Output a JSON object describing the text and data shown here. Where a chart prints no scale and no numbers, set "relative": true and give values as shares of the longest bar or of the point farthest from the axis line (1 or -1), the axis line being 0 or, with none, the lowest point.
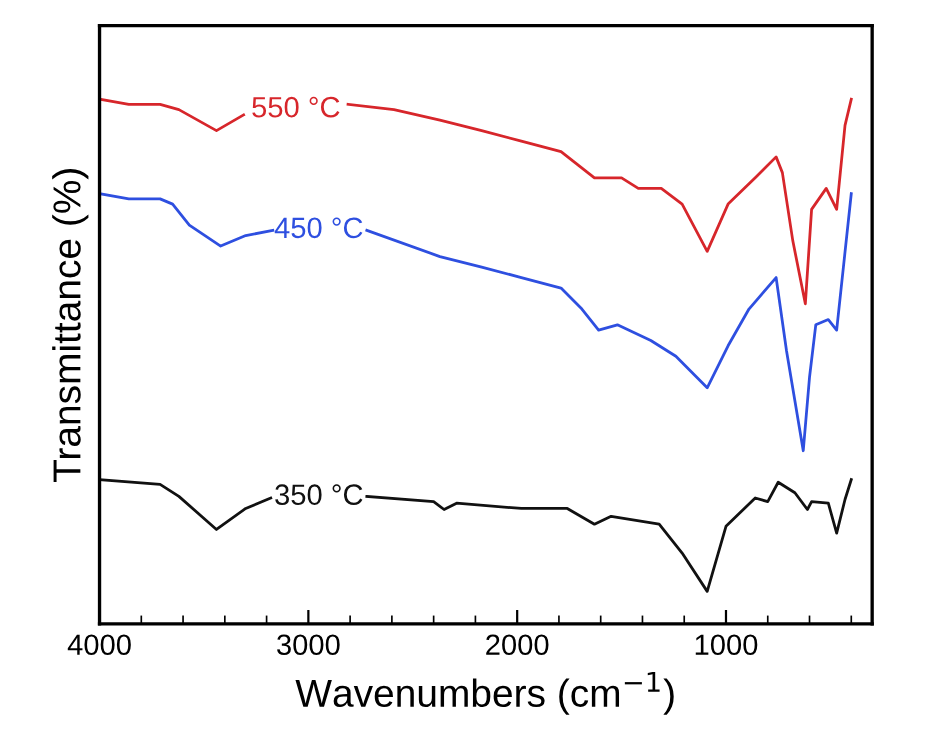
{
  "chart_data": {
    "type": "line",
    "xlabel": "Wavenumbers (cm$^{−1}$)",
    "ylabel": "Transmittance (%)",
    "relative": true,
    "xlim": [
      4000,
      300
    ],
    "xticks": [
      4000,
      3000,
      2000,
      1000
    ],
    "grid": false,
    "legend": false,
    "line_style": "solid",
    "marker": "none",
    "series": [
      {
        "name": "550 °C",
        "color": "#d7262b",
        "x": [
          4000,
          3860,
          3710,
          3620,
          3440,
          3310,
          3060,
          2810,
          2590,
          2370,
          2170,
          1980,
          1790,
          1630,
          1500,
          1420,
          1310,
          1210,
          1090,
          990,
          860,
          760,
          730,
          680,
          620,
          590,
          520,
          470,
          430,
          400
        ],
        "values": [
          1.0,
          0.99,
          0.99,
          0.98,
          0.94,
          0.97,
          null,
          0.99,
          0.98,
          0.96,
          0.94,
          0.92,
          0.9,
          0.85,
          0.85,
          0.83,
          0.83,
          0.8,
          0.71,
          0.8,
          0.85,
          0.89,
          0.86,
          0.73,
          0.61,
          0.79,
          0.83,
          0.79,
          0.95,
          1.0
        ]
      },
      {
        "name": "450 °C",
        "color": "#2e4fe0",
        "x": [
          4000,
          3860,
          3710,
          3650,
          3570,
          3420,
          3300,
          3170,
          2950,
          2720,
          2370,
          2170,
          1980,
          1790,
          1690,
          1610,
          1520,
          1360,
          1240,
          1090,
          990,
          890,
          760,
          710,
          630,
          600,
          570,
          510,
          470,
          400
        ],
        "values": [
          0.82,
          0.81,
          0.81,
          0.8,
          0.76,
          0.72,
          0.74,
          0.75,
          null,
          0.75,
          0.7,
          0.68,
          0.66,
          0.64,
          0.6,
          0.56,
          0.57,
          0.54,
          0.51,
          0.45,
          0.53,
          0.6,
          0.66,
          0.52,
          0.33,
          0.47,
          0.57,
          0.58,
          0.56,
          0.82
        ]
      },
      {
        "name": "350 °C",
        "color": "#111111",
        "x": [
          4000,
          3710,
          3620,
          3440,
          3300,
          3180,
          2950,
          2720,
          2400,
          2350,
          2290,
          1980,
          1760,
          1630,
          1550,
          1320,
          1210,
          1090,
          1000,
          860,
          800,
          750,
          670,
          610,
          590,
          510,
          470,
          430,
          400
        ],
        "values": [
          0.275,
          0.266,
          0.243,
          0.18,
          0.22,
          0.24,
          null,
          0.243,
          0.233,
          0.218,
          0.23,
          0.22,
          0.22,
          0.19,
          0.205,
          0.19,
          0.135,
          0.062,
          0.186,
          0.24,
          0.233,
          0.27,
          0.25,
          0.218,
          0.233,
          0.23,
          0.173,
          0.237,
          0.275
        ]
      }
    ]
  }
}
